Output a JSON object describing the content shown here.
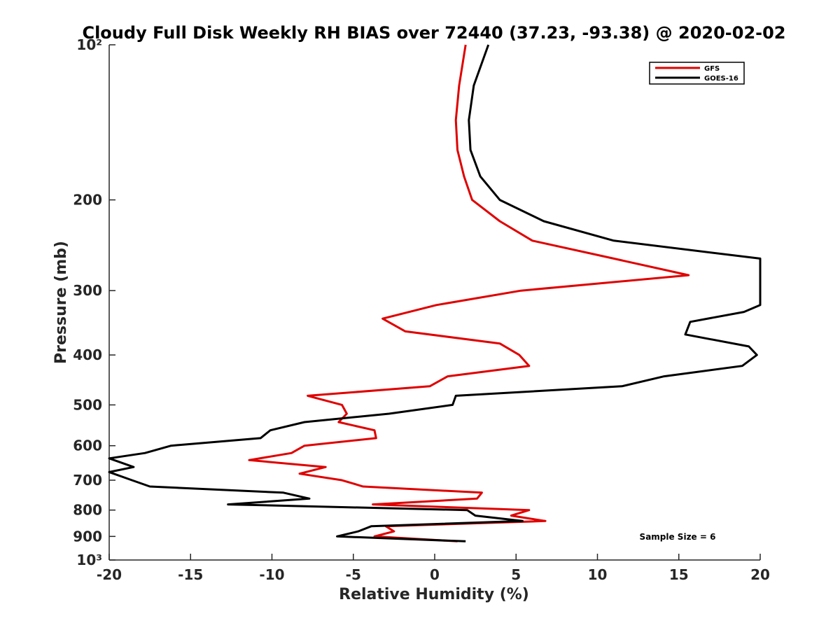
{
  "chart_data": {
    "type": "line",
    "title": "Cloudy Full Disk Weekly RH BIAS over 72440 (37.23, -93.38) @ 2020-02-02",
    "xlabel": "Relative Humidity (%)",
    "ylabel": "Pressure (mb)",
    "xlim": [
      -20,
      20
    ],
    "ylim": [
      100,
      1000
    ],
    "yscale": "log",
    "y_reversed": true,
    "grid": false,
    "legend_position": "top-right",
    "x_ticks": [
      "-20",
      "-15",
      "-10",
      "-5",
      "0",
      "5",
      "10",
      "15",
      "20"
    ],
    "x_tick_values": [
      -20,
      -15,
      -10,
      -5,
      0,
      5,
      10,
      15,
      20
    ],
    "y_tick_values": [
      100,
      200,
      300,
      400,
      500,
      600,
      700,
      800,
      900,
      1000
    ],
    "y_ticks": [
      "10²",
      "200",
      "300",
      "400",
      "500",
      "600",
      "700",
      "800",
      "900",
      "10³"
    ],
    "annotation": "Sample Size = 6",
    "series": [
      {
        "name": "GFS",
        "color": "#e00000",
        "points": [
          [
            1.9,
            100
          ],
          [
            1.5,
            120
          ],
          [
            1.3,
            140
          ],
          [
            1.4,
            160
          ],
          [
            1.8,
            180
          ],
          [
            2.3,
            200
          ],
          [
            4.0,
            220
          ],
          [
            6.0,
            240
          ],
          [
            11.0,
            260
          ],
          [
            15.6,
            280
          ],
          [
            5.3,
            300
          ],
          [
            0.1,
            320
          ],
          [
            -3.2,
            340
          ],
          [
            -1.8,
            360
          ],
          [
            4.0,
            380
          ],
          [
            5.2,
            400
          ],
          [
            5.8,
            420
          ],
          [
            0.8,
            440
          ],
          [
            -0.3,
            460
          ],
          [
            -7.8,
            480
          ],
          [
            -5.7,
            500
          ],
          [
            -5.4,
            520
          ],
          [
            -5.9,
            540
          ],
          [
            -3.7,
            560
          ],
          [
            -3.6,
            580
          ],
          [
            -8.0,
            600
          ],
          [
            -8.8,
            620
          ],
          [
            -11.4,
            640
          ],
          [
            -6.7,
            660
          ],
          [
            -8.3,
            680
          ],
          [
            -5.7,
            700
          ],
          [
            -4.4,
            720
          ],
          [
            2.9,
            740
          ],
          [
            2.6,
            760
          ],
          [
            -3.8,
            780
          ],
          [
            5.8,
            800
          ],
          [
            4.7,
            820
          ],
          [
            6.8,
            840
          ],
          [
            -3.0,
            860
          ],
          [
            -2.5,
            880
          ],
          [
            -3.7,
            900
          ],
          [
            1.4,
            920
          ]
        ]
      },
      {
        "name": "GOES-16",
        "color": "#000000",
        "points": [
          [
            3.3,
            100
          ],
          [
            2.4,
            120
          ],
          [
            2.1,
            140
          ],
          [
            2.2,
            160
          ],
          [
            2.8,
            180
          ],
          [
            4.0,
            200
          ],
          [
            6.7,
            220
          ],
          [
            11.0,
            240
          ],
          [
            20.0,
            260
          ],
          [
            20.0,
            320
          ],
          [
            19.0,
            330
          ],
          [
            15.7,
            345
          ],
          [
            15.4,
            365
          ],
          [
            19.3,
            385
          ],
          [
            19.8,
            400
          ],
          [
            18.9,
            420
          ],
          [
            14.1,
            440
          ],
          [
            11.5,
            460
          ],
          [
            1.3,
            480
          ],
          [
            1.1,
            500
          ],
          [
            -2.8,
            520
          ],
          [
            -8.0,
            540
          ],
          [
            -10.1,
            560
          ],
          [
            -10.7,
            580
          ],
          [
            -16.2,
            600
          ],
          [
            -17.8,
            620
          ],
          [
            -20.0,
            635
          ],
          [
            -18.5,
            660
          ],
          [
            -20.0,
            675
          ],
          [
            -18.6,
            700
          ],
          [
            -17.5,
            720
          ],
          [
            -9.3,
            740
          ],
          [
            -7.7,
            760
          ],
          [
            -12.7,
            780
          ],
          [
            2.0,
            800
          ],
          [
            2.5,
            820
          ],
          [
            5.4,
            840
          ],
          [
            -3.9,
            860
          ],
          [
            -4.7,
            880
          ],
          [
            -6.0,
            900
          ],
          [
            1.9,
            920
          ]
        ]
      }
    ]
  }
}
